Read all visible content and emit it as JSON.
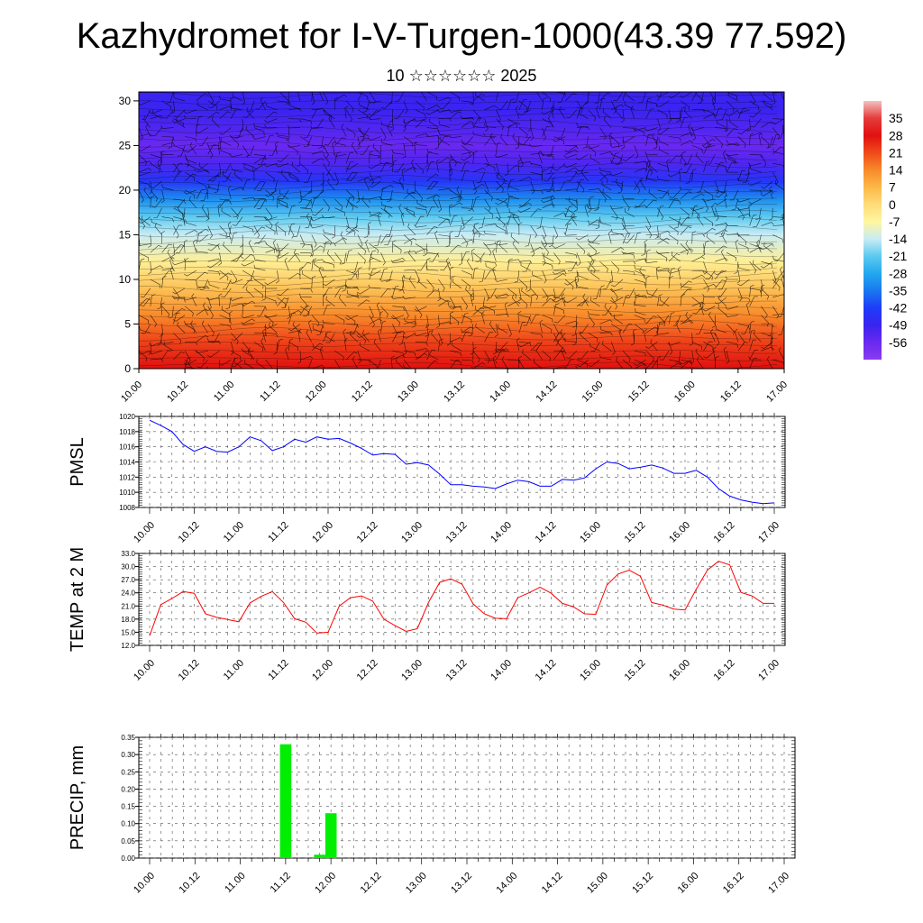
{
  "title": "Kazhydromet for I-V-Turgen-1000(43.39 77.592)",
  "subtitle": "10 ☆☆☆☆☆☆ 2025",
  "time_ticks": [
    "10.00",
    "10.12",
    "11.00",
    "11.12",
    "12.00",
    "12.12",
    "13.00",
    "13.12",
    "14.00",
    "14.12",
    "15.00",
    "15.12",
    "16.00",
    "16.12",
    "17.00"
  ],
  "chart_data": [
    {
      "type": "heatmap",
      "name": "",
      "x_ticks": [
        "10.00",
        "10.12",
        "11.00",
        "11.12",
        "12.00",
        "12.12",
        "13.00",
        "13.12",
        "14.00",
        "14.12",
        "15.00",
        "15.12",
        "16.00",
        "16.12",
        "17.00"
      ],
      "y_ticks": [
        "0",
        "5",
        "10",
        "15",
        "20",
        "25",
        "30"
      ],
      "ylim": [
        0,
        31
      ],
      "colorbar_labels": [
        "35",
        "28",
        "21",
        "14",
        "7",
        "0",
        "-7",
        "-14",
        "-21",
        "-28",
        "-35",
        "-42",
        "-49",
        "-56"
      ],
      "colorbar_range": [
        -63,
        42
      ],
      "description_overlay": "wind barbs",
      "level_temperature_profile": {
        "levels": [
          0,
          3,
          6,
          9,
          12,
          15,
          17,
          19,
          21,
          23,
          25,
          27,
          29,
          31
        ],
        "temperature": [
          28,
          22,
          14,
          5,
          -5,
          -14,
          -21,
          -32,
          -44,
          -52,
          -56,
          -52,
          -49,
          -49
        ]
      }
    },
    {
      "type": "line",
      "ylabel": "PMSL",
      "ylim": [
        1008,
        1020
      ],
      "y_ticks": [
        "1020",
        "1018",
        "1016",
        "1014",
        "1012",
        "1010",
        "1008"
      ],
      "x": [
        "10.00",
        "10.03",
        "10.06",
        "10.09",
        "10.12",
        "10.15",
        "10.18",
        "10.21",
        "11.00",
        "11.03",
        "11.06",
        "11.09",
        "11.12",
        "11.15",
        "11.18",
        "11.21",
        "12.00",
        "12.03",
        "12.06",
        "12.09",
        "12.12",
        "12.15",
        "12.18",
        "12.21",
        "13.00",
        "13.03",
        "13.06",
        "13.09",
        "13.12",
        "13.15",
        "13.18",
        "13.21",
        "14.00",
        "14.03",
        "14.06",
        "14.09",
        "14.12",
        "14.15",
        "14.18",
        "14.21",
        "15.00",
        "15.03",
        "15.06",
        "15.09",
        "15.12",
        "15.15",
        "15.18",
        "15.21",
        "16.00",
        "16.03",
        "16.06",
        "16.09",
        "16.12",
        "16.15",
        "16.18",
        "16.21",
        "17.00"
      ],
      "series": [
        {
          "color": "#0000ff",
          "values": [
            1019.5,
            1018.8,
            1018.0,
            1016.3,
            1015.4,
            1016.0,
            1015.4,
            1015.3,
            1016.0,
            1017.3,
            1016.8,
            1015.5,
            1016.0,
            1017.0,
            1016.6,
            1017.3,
            1017.0,
            1017.1,
            1016.5,
            1015.8,
            1014.9,
            1015.1,
            1015.0,
            1013.7,
            1013.9,
            1013.6,
            1012.4,
            1011.0,
            1011.0,
            1010.8,
            1010.7,
            1010.5,
            1011.1,
            1011.6,
            1011.4,
            1010.8,
            1010.8,
            1011.7,
            1011.6,
            1011.9,
            1013.1,
            1014.0,
            1013.8,
            1013.1,
            1013.3,
            1013.6,
            1013.2,
            1012.5,
            1012.5,
            1012.9,
            1012.0,
            1010.5,
            1009.5,
            1009.0,
            1008.7,
            1008.5,
            1008.6
          ]
        }
      ]
    },
    {
      "type": "line",
      "ylabel": "TEMP at 2 M",
      "ylim": [
        12.0,
        33.0
      ],
      "y_ticks": [
        "33.0",
        "30.0",
        "27.0",
        "24.0",
        "21.0",
        "18.0",
        "15.0",
        "12.0"
      ],
      "x": [
        "10.00",
        "10.03",
        "10.06",
        "10.09",
        "10.12",
        "10.15",
        "10.18",
        "10.21",
        "11.00",
        "11.03",
        "11.06",
        "11.09",
        "11.12",
        "11.15",
        "11.18",
        "11.21",
        "12.00",
        "12.03",
        "12.06",
        "12.09",
        "12.12",
        "12.15",
        "12.18",
        "12.21",
        "13.00",
        "13.03",
        "13.06",
        "13.09",
        "13.12",
        "13.15",
        "13.18",
        "13.21",
        "14.00",
        "14.03",
        "14.06",
        "14.09",
        "14.12",
        "14.15",
        "14.18",
        "14.21",
        "15.00",
        "15.03",
        "15.06",
        "15.09",
        "15.12",
        "15.15",
        "15.18",
        "15.21",
        "16.00",
        "16.03",
        "16.06",
        "16.09",
        "16.12",
        "16.15",
        "16.18",
        "16.21",
        "17.00"
      ],
      "series": [
        {
          "color": "#ff0000",
          "values": [
            14.2,
            21.3,
            22.7,
            24.3,
            23.9,
            19.2,
            18.4,
            17.9,
            17.4,
            21.7,
            23.2,
            24.3,
            21.8,
            18.1,
            17.3,
            14.8,
            15.0,
            21.0,
            22.9,
            23.3,
            22.1,
            18.0,
            16.5,
            15.2,
            15.8,
            21.8,
            26.4,
            27.2,
            26.0,
            21.5,
            19.2,
            18.2,
            18.1,
            22.9,
            24.0,
            25.3,
            23.9,
            21.6,
            20.8,
            19.2,
            19.1,
            25.8,
            28.3,
            29.2,
            27.8,
            21.8,
            21.2,
            20.3,
            20.1,
            24.8,
            29.2,
            31.2,
            30.4,
            24.1,
            23.3,
            21.6,
            21.6
          ]
        }
      ]
    },
    {
      "type": "bar",
      "ylabel": "PRECIP, mm",
      "ylim": [
        0,
        0.35
      ],
      "y_ticks": [
        "0.35",
        "0.30",
        "0.25",
        "0.20",
        "0.15",
        "0.10",
        "0.05",
        "0.00"
      ],
      "color": "#00ee00",
      "bars": [
        {
          "x": "11.12",
          "value": 0.33
        },
        {
          "x": "11.21",
          "value": 0.01
        },
        {
          "x": "12.00",
          "value": 0.13
        }
      ]
    }
  ]
}
